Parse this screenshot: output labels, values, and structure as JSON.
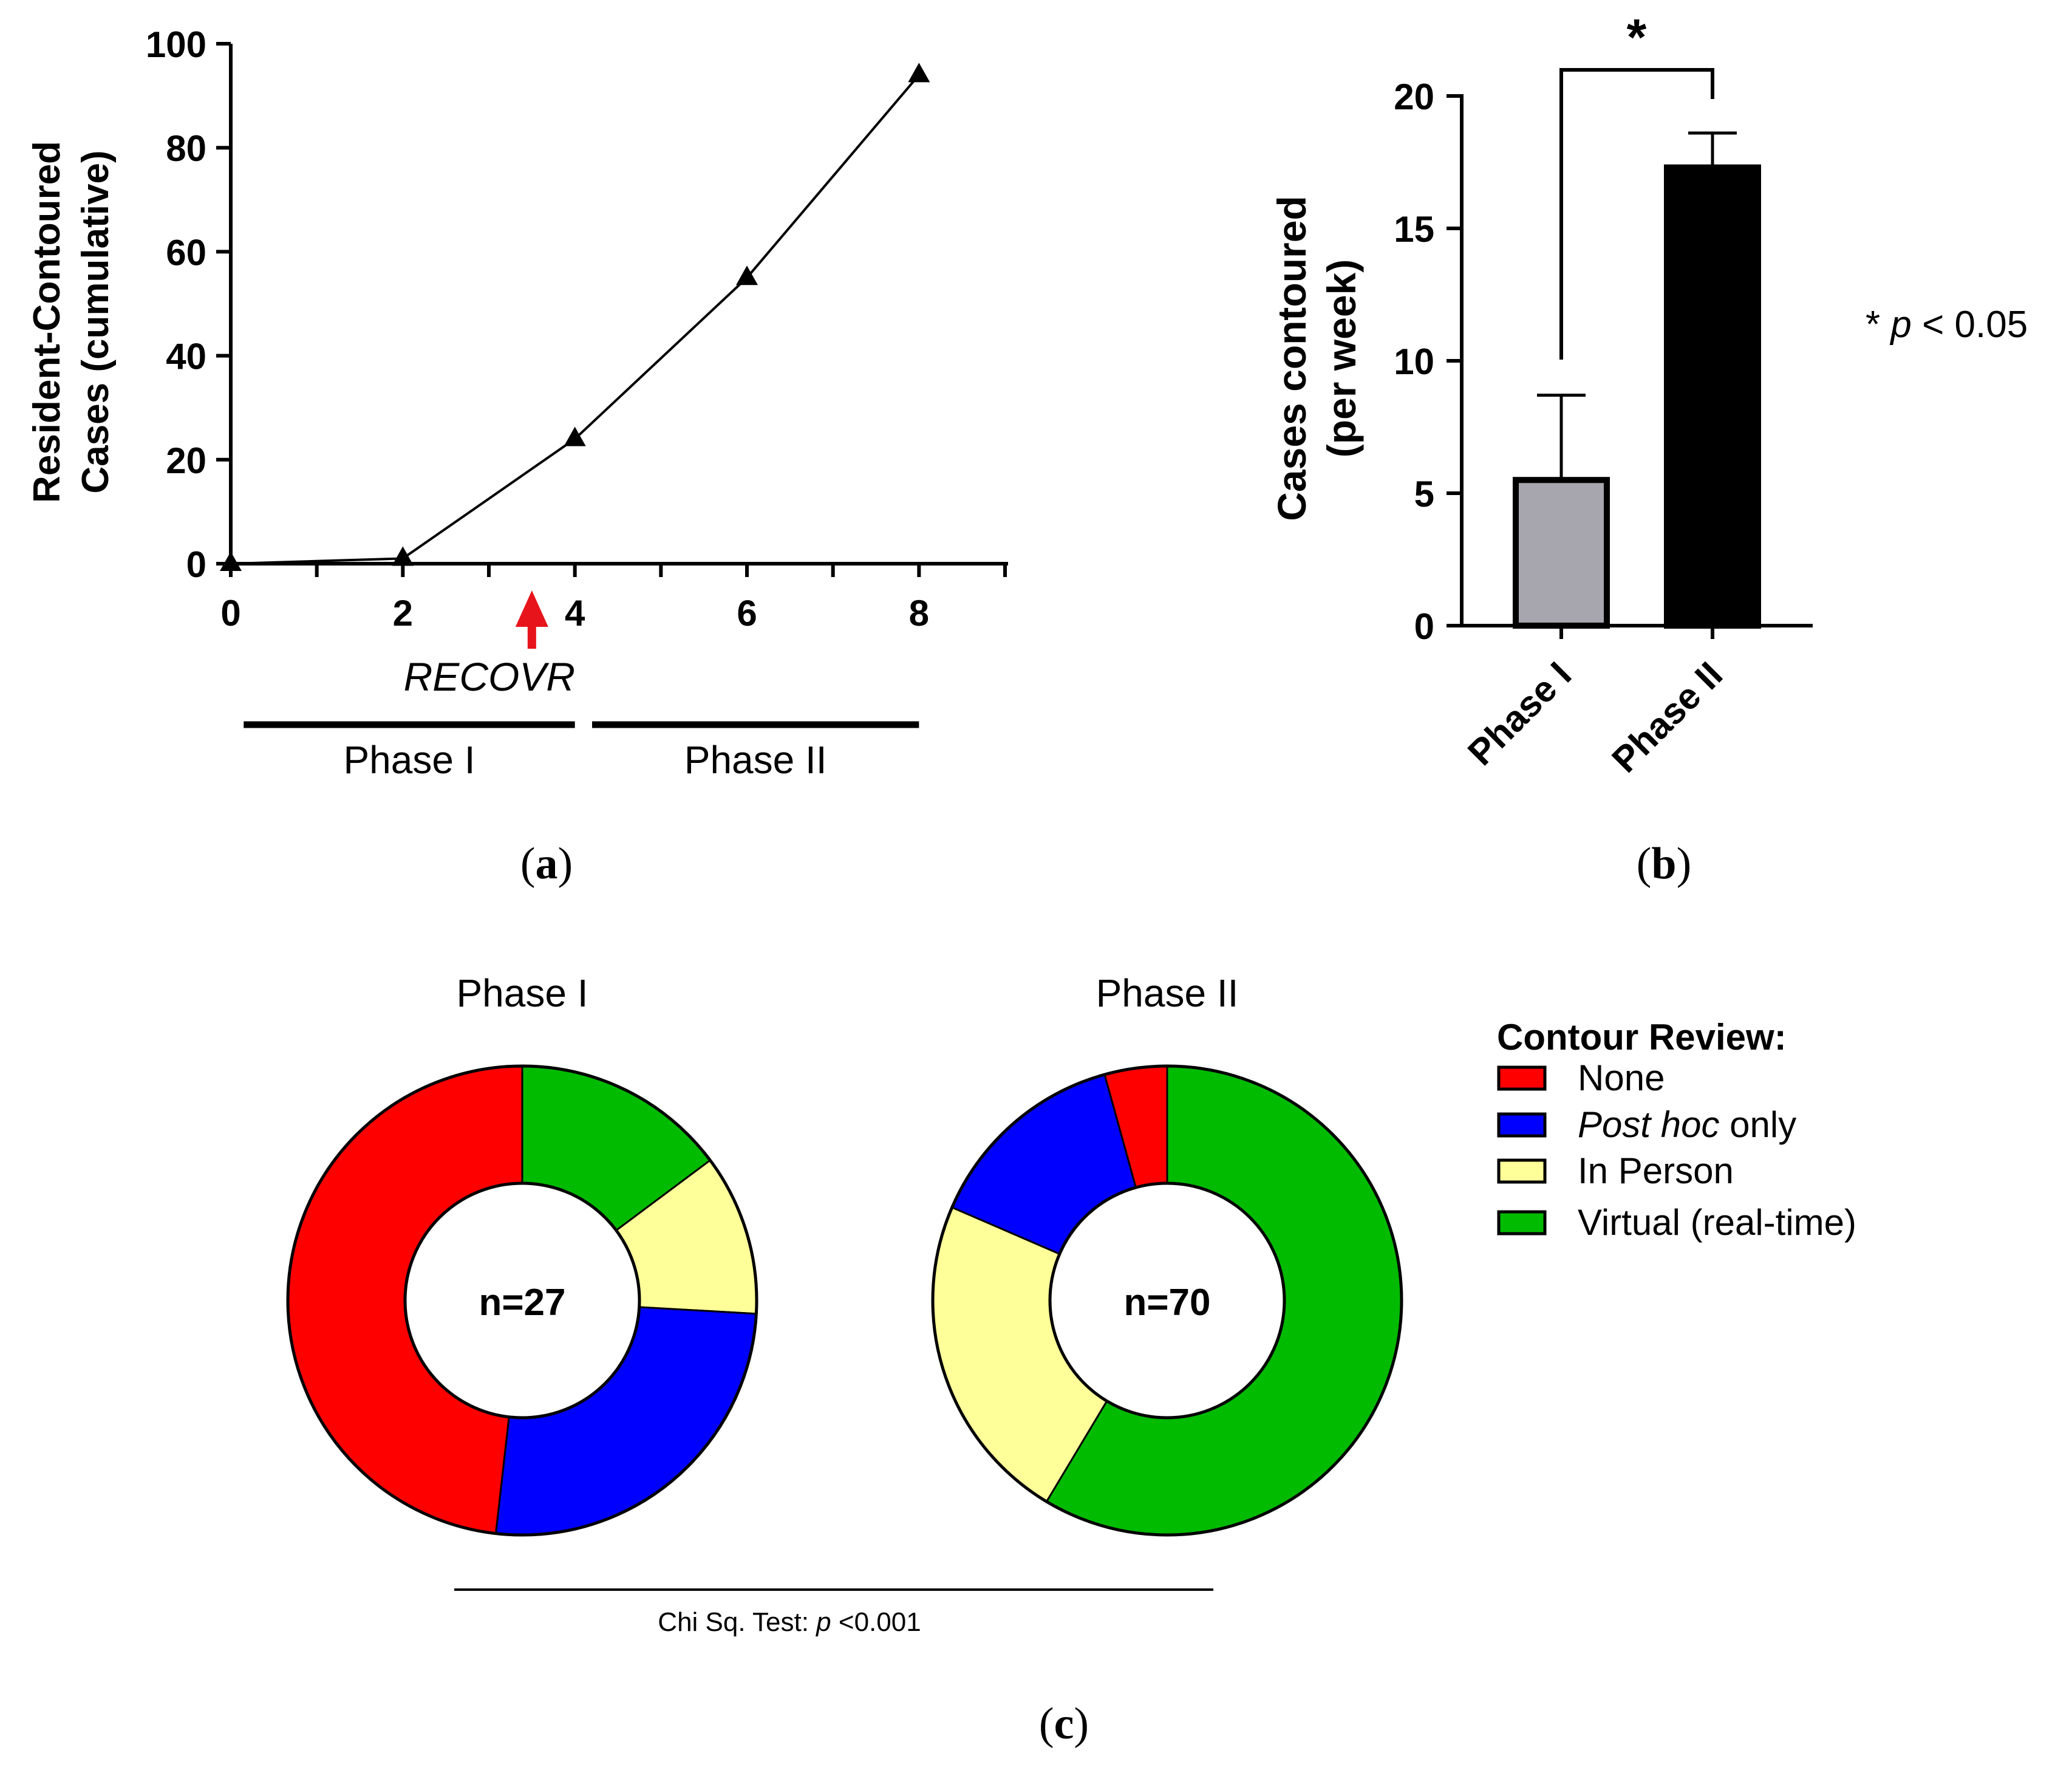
{
  "panels": {
    "a": {
      "label_open": "(",
      "label_letter": "a",
      "label_close": ")"
    },
    "b": {
      "label_open": "(",
      "label_letter": "b",
      "label_close": ")"
    },
    "c": {
      "label_open": "(",
      "label_letter": "c",
      "label_close": ")"
    }
  },
  "chart_data": [
    {
      "type": "line",
      "ylabel_line1": "Resident-Contoured",
      "ylabel_line2": "Cases (cumulative)",
      "xlabel": "",
      "x": [
        0,
        2,
        4,
        6,
        8
      ],
      "y": [
        0,
        1,
        24,
        55,
        94
      ],
      "xlim": [
        0,
        9
      ],
      "ylim": [
        0,
        100
      ],
      "xticks": [
        0,
        2,
        4,
        6,
        8
      ],
      "yticks": [
        0,
        20,
        40,
        60,
        80,
        100
      ],
      "marker": "triangle",
      "annotation": {
        "text": "RECOVR",
        "x": 3.5,
        "color": "#e8141b"
      },
      "phases": [
        {
          "name": "Phase I",
          "x_start": 0.15,
          "x_end": 4.0
        },
        {
          "name": "Phase II",
          "x_start": 4.2,
          "x_end": 8.0
        }
      ]
    },
    {
      "type": "bar",
      "ylabel_line1": "Cases contoured",
      "ylabel_line2": "(per week)",
      "categories": [
        "Phase I",
        "Phase II"
      ],
      "values": [
        5.5,
        17.3
      ],
      "error": [
        3.2,
        1.3
      ],
      "colors": [
        "#a7a5ad",
        "#000000"
      ],
      "ylim": [
        0,
        20
      ],
      "yticks": [
        0,
        5,
        10,
        15,
        20
      ],
      "significance": {
        "marker": "*",
        "note_star": "* ",
        "note_p": "p",
        "note_rest": " < 0.05"
      }
    },
    {
      "type": "pie",
      "donut": true,
      "legend_title": "Contour Review:",
      "legend": [
        {
          "label_pre": "",
          "label_italic": "",
          "label_post": "None",
          "color": "#ff0000"
        },
        {
          "label_pre": "",
          "label_italic": "Post hoc",
          "label_post": " only",
          "color": "#0000ff"
        },
        {
          "label_pre": "",
          "label_italic": "",
          "label_post": "In Person",
          "color": "#ffff99"
        },
        {
          "label_pre": "",
          "label_italic": "",
          "label_post": "Virtual (real-time)",
          "color": "#00bb00"
        }
      ],
      "pies": [
        {
          "title": "Phase I",
          "center_label": "n=27",
          "slices": [
            {
              "category": "Virtual (real-time)",
              "value": 14.8
            },
            {
              "category": "In Person",
              "value": 11.1
            },
            {
              "category": "Post hoc only",
              "value": 25.9
            },
            {
              "category": "None",
              "value": 48.2
            }
          ]
        },
        {
          "title": "Phase II",
          "center_label": "n=70",
          "slices": [
            {
              "category": "Virtual (real-time)",
              "value": 58.6
            },
            {
              "category": "In Person",
              "value": 22.9
            },
            {
              "category": "Post hoc only",
              "value": 14.2
            },
            {
              "category": "None",
              "value": 4.3
            }
          ]
        }
      ],
      "test_label": {
        "pre": "Chi Sq. Test: ",
        "italic": "p",
        "post": " <0.001"
      }
    }
  ]
}
